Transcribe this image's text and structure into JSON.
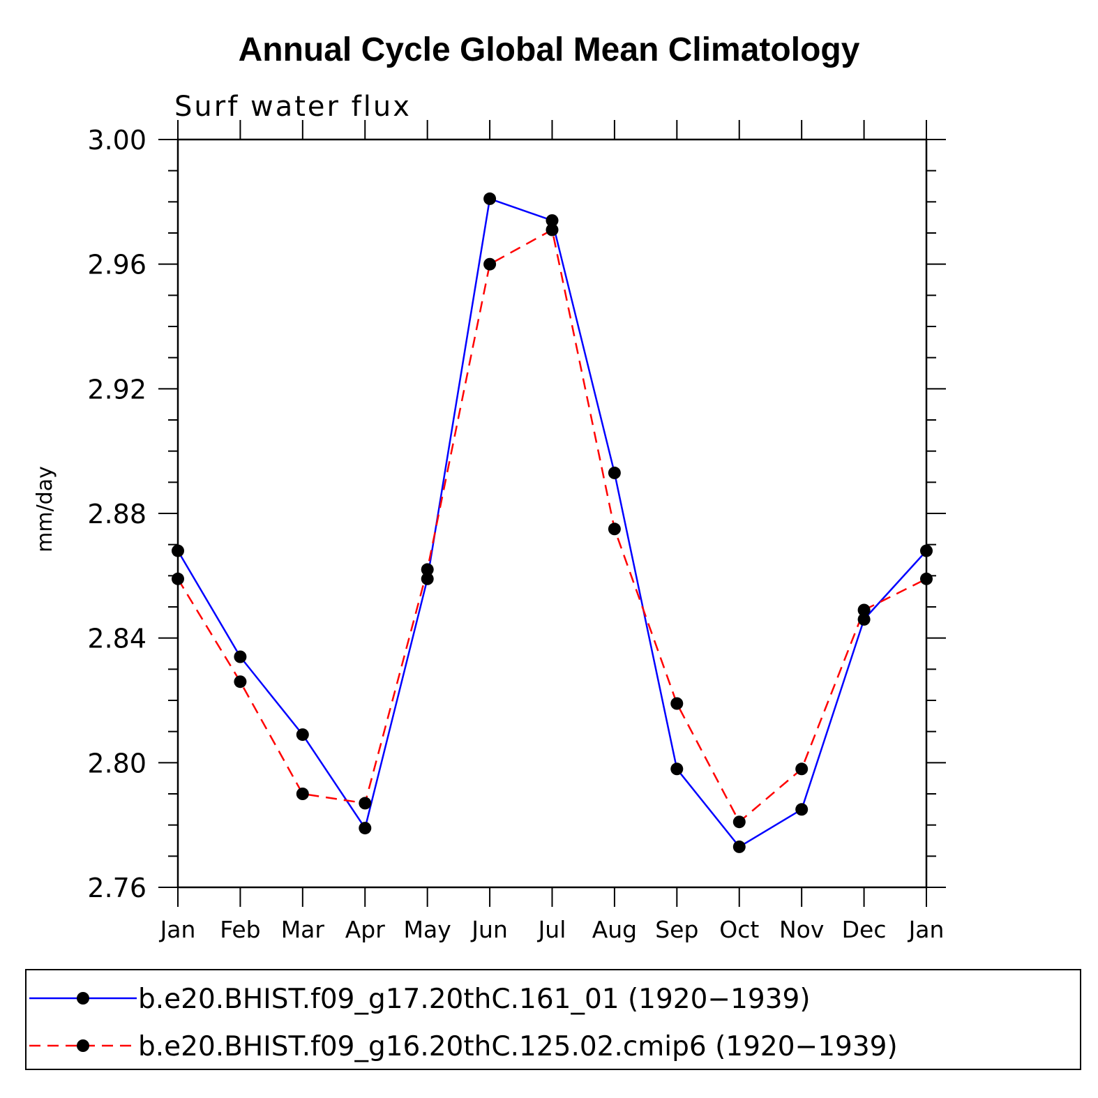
{
  "chart_data": {
    "type": "line",
    "title": "Annual Cycle Global Mean Climatology",
    "subtitle": "Surf water flux",
    "xlabel": "",
    "ylabel": "mm/day",
    "ylim": [
      2.76,
      3.0
    ],
    "yticks": [
      "2.76",
      "2.80",
      "2.84",
      "2.88",
      "2.92",
      "2.96",
      "3.00"
    ],
    "yminor_step": 0.01,
    "categories": [
      "Jan",
      "Feb",
      "Mar",
      "Apr",
      "May",
      "Jun",
      "Jul",
      "Aug",
      "Sep",
      "Oct",
      "Nov",
      "Dec",
      "Jan"
    ],
    "grid": false,
    "legend_position": "bottom",
    "series": [
      {
        "name": "b.e20.BHIST.f09_g17.20thC.161_01 (1920−1939)",
        "color": "#0000ff",
        "dash": "solid",
        "marker": "circle",
        "values": [
          2.868,
          2.834,
          2.809,
          2.779,
          2.859,
          2.981,
          2.974,
          2.893,
          2.798,
          2.773,
          2.785,
          2.846,
          2.868
        ]
      },
      {
        "name": "b.e20.BHIST.f09_g16.20thC.125.02.cmip6 (1920−1939)",
        "color": "#ff0000",
        "dash": "dashed",
        "marker": "circle",
        "values": [
          2.859,
          2.826,
          2.79,
          2.787,
          2.862,
          2.96,
          2.971,
          2.875,
          2.819,
          2.781,
          2.798,
          2.849,
          2.859
        ]
      }
    ]
  }
}
